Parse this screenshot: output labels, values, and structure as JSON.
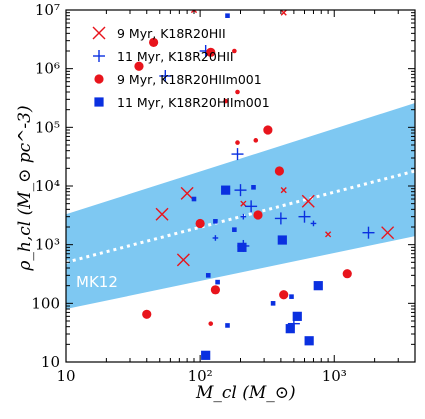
{
  "chart_data": {
    "type": "scatter",
    "title": "",
    "xlabel": "M_cl (M_⊙)",
    "ylabel": "ρ_h,cl (M_⊙ pc^-3)",
    "xscale": "log",
    "yscale": "log",
    "xlim": [
      10,
      4000
    ],
    "ylim": [
      10,
      10000000
    ],
    "x_ticks": [
      10,
      100,
      1000
    ],
    "x_tick_labels": [
      "10",
      "10²",
      "10³"
    ],
    "y_ticks": [
      10,
      100,
      1000,
      10000,
      100000,
      1000000,
      10000000
    ],
    "y_tick_labels": [
      "10",
      "100",
      "10³",
      "10⁴",
      "10⁵",
      "10⁶",
      "10⁷"
    ],
    "legend_position": "top-left",
    "band": {
      "label": "MK12",
      "color": "#7ec8f2",
      "lower": [
        [
          10,
          80
        ],
        [
          4000,
          1400
        ]
      ],
      "upper": [
        [
          10,
          3300
        ],
        [
          4000,
          260000
        ]
      ],
      "median": [
        [
          10,
          500
        ],
        [
          4000,
          18000
        ]
      ]
    },
    "series": [
      {
        "name": "9 Myr, K18R20HII",
        "marker": "x",
        "color": "#e8141c",
        "points": [
          {
            "x": 52,
            "y": 3300,
            "s": "large"
          },
          {
            "x": 80,
            "y": 7500,
            "s": "large"
          },
          {
            "x": 75,
            "y": 550,
            "s": "large"
          },
          {
            "x": 210,
            "y": 5000,
            "s": "small"
          },
          {
            "x": 420,
            "y": 8500,
            "s": "small"
          },
          {
            "x": 640,
            "y": 5500,
            "s": "large"
          },
          {
            "x": 2500,
            "y": 1600,
            "s": "large"
          },
          {
            "x": 900,
            "y": 1500,
            "s": "small"
          },
          {
            "x": 90,
            "y": 10000000,
            "s": "small"
          },
          {
            "x": 420,
            "y": 9000000,
            "s": "small"
          }
        ]
      },
      {
        "name": "11 Myr, K18R20HII",
        "marker": "+",
        "color": "#0a30e0",
        "points": [
          {
            "x": 55,
            "y": 750000,
            "s": "large"
          },
          {
            "x": 110,
            "y": 2000000,
            "s": "large"
          },
          {
            "x": 190,
            "y": 35000,
            "s": "large"
          },
          {
            "x": 200,
            "y": 8500,
            "s": "large"
          },
          {
            "x": 210,
            "y": 3000,
            "s": "small"
          },
          {
            "x": 240,
            "y": 4500,
            "s": "large"
          },
          {
            "x": 210,
            "y": 950,
            "s": "large"
          },
          {
            "x": 400,
            "y": 2800,
            "s": "large"
          },
          {
            "x": 600,
            "y": 3000,
            "s": "large"
          },
          {
            "x": 1800,
            "y": 1600,
            "s": "large"
          },
          {
            "x": 130,
            "y": 1300,
            "s": "small"
          },
          {
            "x": 500,
            "y": 45,
            "s": "large"
          },
          {
            "x": 700,
            "y": 2300,
            "s": "small"
          }
        ]
      },
      {
        "name": "9 Myr, K18R20HIIm001",
        "marker": "circle",
        "color": "#e8141c",
        "points": [
          {
            "x": 45,
            "y": 2800000,
            "s": "large"
          },
          {
            "x": 35,
            "y": 1100000,
            "s": "large"
          },
          {
            "x": 120,
            "y": 1900000,
            "s": "large"
          },
          {
            "x": 180,
            "y": 2000000,
            "s": "small"
          },
          {
            "x": 155,
            "y": 280000,
            "s": "small"
          },
          {
            "x": 190,
            "y": 400000,
            "s": "small"
          },
          {
            "x": 320,
            "y": 90000,
            "s": "large"
          },
          {
            "x": 260,
            "y": 60000,
            "s": "small"
          },
          {
            "x": 190,
            "y": 55000,
            "s": "small"
          },
          {
            "x": 390,
            "y": 18000,
            "s": "large"
          },
          {
            "x": 100,
            "y": 2300,
            "s": "large"
          },
          {
            "x": 270,
            "y": 3200,
            "s": "large"
          },
          {
            "x": 420,
            "y": 140,
            "s": "large"
          },
          {
            "x": 130,
            "y": 170,
            "s": "large"
          },
          {
            "x": 40,
            "y": 65,
            "s": "large"
          },
          {
            "x": 120,
            "y": 45,
            "s": "small"
          },
          {
            "x": 1250,
            "y": 320,
            "s": "large"
          }
        ]
      },
      {
        "name": "11 Myr, K18R20HIIm001",
        "marker": "square",
        "color": "#0a30e0",
        "points": [
          {
            "x": 160,
            "y": 8000000,
            "s": "small"
          },
          {
            "x": 155,
            "y": 8500,
            "s": "large"
          },
          {
            "x": 90,
            "y": 6000,
            "s": "small"
          },
          {
            "x": 130,
            "y": 2500,
            "s": "small"
          },
          {
            "x": 180,
            "y": 1800,
            "s": "small"
          },
          {
            "x": 205,
            "y": 900,
            "s": "large"
          },
          {
            "x": 410,
            "y": 1200,
            "s": "large"
          },
          {
            "x": 115,
            "y": 300,
            "s": "small"
          },
          {
            "x": 135,
            "y": 230,
            "s": "small"
          },
          {
            "x": 480,
            "y": 130,
            "s": "small"
          },
          {
            "x": 760,
            "y": 200,
            "s": "large"
          },
          {
            "x": 530,
            "y": 60,
            "s": "large"
          },
          {
            "x": 470,
            "y": 37,
            "s": "large"
          },
          {
            "x": 650,
            "y": 23,
            "s": "large"
          },
          {
            "x": 160,
            "y": 42,
            "s": "small"
          },
          {
            "x": 110,
            "y": 13,
            "s": "large"
          },
          {
            "x": 350,
            "y": 100,
            "s": "small"
          },
          {
            "x": 250,
            "y": 9500,
            "s": "small"
          }
        ]
      }
    ]
  }
}
